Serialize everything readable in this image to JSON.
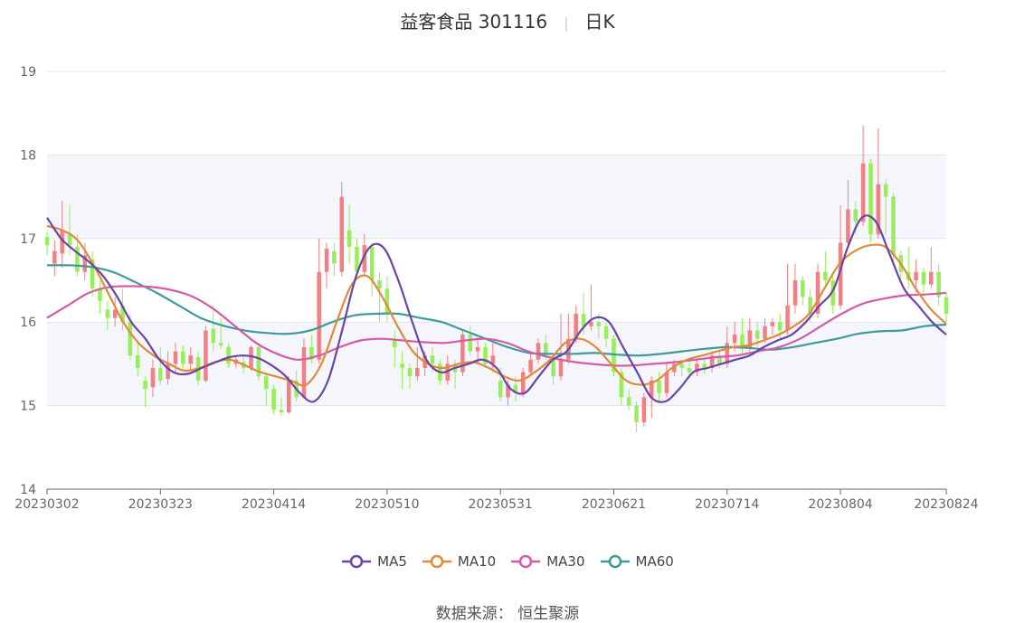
{
  "title": "益客食品 301116",
  "subtitle": "日K",
  "source_label": "数据来源：",
  "source_value": "恒生聚源",
  "colors": {
    "up": "#f47f82",
    "down": "#97ed5a",
    "ma5": "#6a44a6",
    "ma10": "#e08a3c",
    "ma30": "#d55aa8",
    "ma60": "#3f9a9a",
    "grid": "#dfe3ee",
    "band": "#f4f6fb"
  },
  "chart_data": {
    "type": "candlestick",
    "ylim": [
      14,
      19
    ],
    "yticks": [
      14,
      15,
      16,
      17,
      18,
      19
    ],
    "xtick_labels": [
      "20230302",
      "20230323",
      "20230414",
      "20230510",
      "20230531",
      "20230621",
      "20230714",
      "20230804",
      "20230824"
    ],
    "xtick_index": [
      0,
      15,
      30,
      45,
      60,
      75,
      90,
      105,
      119
    ],
    "legend": [
      "MA5",
      "MA10",
      "MA30",
      "MA60"
    ],
    "candles": [
      [
        17.02,
        16.92,
        17.08,
        16.8
      ],
      [
        16.7,
        16.85,
        16.98,
        16.55
      ],
      [
        16.82,
        17.1,
        17.45,
        16.65
      ],
      [
        17.05,
        16.92,
        17.4,
        16.8
      ],
      [
        16.9,
        16.6,
        17.05,
        16.55
      ],
      [
        16.6,
        16.8,
        16.95,
        16.5
      ],
      [
        16.75,
        16.4,
        16.85,
        16.3
      ],
      [
        16.4,
        16.25,
        16.5,
        16.1
      ],
      [
        16.15,
        16.05,
        16.25,
        15.9
      ],
      [
        16.05,
        16.15,
        16.3,
        15.95
      ],
      [
        16.2,
        16.0,
        16.4,
        15.9
      ],
      [
        16.0,
        15.6,
        16.1,
        15.55
      ],
      [
        15.6,
        15.45,
        15.75,
        15.35
      ],
      [
        15.3,
        15.2,
        15.35,
        14.98
      ],
      [
        15.22,
        15.45,
        15.55,
        15.1
      ],
      [
        15.45,
        15.3,
        15.7,
        15.25
      ],
      [
        15.32,
        15.5,
        15.65,
        15.25
      ],
      [
        15.5,
        15.65,
        15.75,
        15.4
      ],
      [
        15.65,
        15.5,
        15.72,
        15.45
      ],
      [
        15.5,
        15.6,
        15.7,
        15.42
      ],
      [
        15.58,
        15.3,
        15.65,
        15.25
      ],
      [
        15.3,
        15.9,
        15.95,
        15.28
      ],
      [
        15.92,
        15.75,
        16.2,
        15.65
      ],
      [
        15.75,
        15.72,
        16.05,
        15.68
      ],
      [
        15.7,
        15.5,
        15.75,
        15.45
      ],
      [
        15.5,
        15.55,
        15.6,
        15.45
      ],
      [
        15.52,
        15.45,
        15.6,
        15.38
      ],
      [
        15.45,
        15.7,
        15.72,
        15.42
      ],
      [
        15.7,
        15.35,
        15.75,
        15.3
      ],
      [
        15.35,
        15.2,
        15.4,
        15.0
      ],
      [
        15.2,
        14.95,
        15.25,
        14.9
      ],
      [
        14.95,
        14.92,
        15.1,
        14.88
      ],
      [
        14.92,
        15.3,
        15.35,
        14.9
      ],
      [
        15.3,
        15.1,
        15.42,
        15.05
      ],
      [
        15.1,
        15.7,
        15.8,
        15.08
      ],
      [
        15.7,
        15.55,
        15.85,
        15.5
      ],
      [
        15.55,
        16.6,
        17.0,
        15.5
      ],
      [
        16.6,
        16.88,
        16.95,
        16.4
      ],
      [
        16.85,
        16.7,
        16.95,
        16.55
      ],
      [
        16.6,
        17.5,
        17.68,
        16.55
      ],
      [
        17.1,
        16.9,
        17.4,
        16.7
      ],
      [
        16.9,
        16.6,
        17.0,
        16.55
      ],
      [
        16.6,
        16.92,
        17.05,
        16.55
      ],
      [
        16.9,
        16.5,
        16.95,
        16.3
      ],
      [
        16.5,
        16.4,
        16.6,
        16.0
      ],
      [
        16.4,
        16.1,
        16.55,
        16.0
      ],
      [
        15.8,
        15.7,
        15.9,
        15.45
      ],
      [
        15.5,
        15.45,
        15.65,
        15.2
      ],
      [
        15.45,
        15.35,
        15.5,
        15.2
      ],
      [
        15.35,
        15.45,
        15.7,
        15.3
      ],
      [
        15.45,
        15.6,
        15.65,
        15.35
      ],
      [
        15.6,
        15.5,
        15.7,
        15.4
      ],
      [
        15.5,
        15.3,
        15.55,
        15.25
      ],
      [
        15.3,
        15.5,
        15.6,
        15.25
      ],
      [
        15.5,
        15.4,
        15.55,
        15.2
      ],
      [
        15.4,
        15.85,
        15.9,
        15.35
      ],
      [
        15.85,
        15.65,
        15.95,
        15.6
      ],
      [
        15.65,
        15.7,
        15.8,
        15.5
      ],
      [
        15.7,
        15.5,
        15.75,
        15.45
      ],
      [
        15.5,
        15.6,
        15.75,
        15.4
      ],
      [
        15.3,
        15.1,
        15.45,
        15.05
      ],
      [
        15.1,
        15.25,
        15.3,
        15.0
      ],
      [
        15.25,
        15.15,
        15.35,
        15.05
      ],
      [
        15.15,
        15.4,
        15.45,
        15.1
      ],
      [
        15.4,
        15.55,
        15.65,
        15.35
      ],
      [
        15.55,
        15.75,
        15.8,
        15.5
      ],
      [
        15.75,
        15.6,
        15.85,
        15.55
      ],
      [
        15.55,
        15.35,
        15.6,
        15.25
      ],
      [
        15.35,
        15.55,
        16.1,
        15.3
      ],
      [
        15.55,
        15.8,
        16.1,
        15.5
      ],
      [
        15.8,
        16.1,
        16.2,
        15.75
      ],
      [
        16.1,
        15.95,
        16.35,
        15.85
      ],
      [
        15.95,
        16.0,
        16.45,
        15.9
      ],
      [
        16.0,
        15.95,
        16.1,
        15.8
      ],
      [
        15.95,
        15.8,
        16.0,
        15.7
      ],
      [
        15.8,
        15.4,
        15.85,
        15.35
      ],
      [
        15.4,
        15.1,
        15.45,
        15.0
      ],
      [
        15.1,
        15.0,
        15.2,
        14.95
      ],
      [
        15.0,
        14.8,
        15.05,
        14.68
      ],
      [
        14.8,
        15.1,
        15.15,
        14.75
      ],
      [
        15.1,
        15.3,
        15.35,
        14.85
      ],
      [
        15.3,
        15.15,
        15.4,
        15.05
      ],
      [
        15.15,
        15.4,
        15.5,
        15.1
      ],
      [
        15.4,
        15.5,
        15.55,
        15.35
      ],
      [
        15.5,
        15.45,
        15.55,
        15.35
      ],
      [
        15.45,
        15.4,
        15.52,
        15.32
      ],
      [
        15.4,
        15.5,
        15.55,
        15.35
      ],
      [
        15.5,
        15.45,
        15.55,
        15.38
      ],
      [
        15.45,
        15.6,
        15.65,
        15.4
      ],
      [
        15.6,
        15.5,
        15.65,
        15.45
      ],
      [
        15.5,
        15.75,
        15.95,
        15.45
      ],
      [
        15.75,
        15.85,
        16.0,
        15.65
      ],
      [
        15.85,
        15.7,
        16.05,
        15.6
      ],
      [
        15.7,
        15.9,
        16.05,
        15.65
      ],
      [
        15.9,
        15.8,
        16.0,
        15.7
      ],
      [
        15.8,
        15.95,
        16.05,
        15.75
      ],
      [
        15.95,
        16.0,
        16.05,
        15.85
      ],
      [
        16.0,
        15.9,
        16.1,
        15.8
      ],
      [
        15.9,
        16.2,
        16.7,
        15.85
      ],
      [
        16.2,
        16.5,
        16.7,
        16.1
      ],
      [
        16.5,
        16.3,
        16.55,
        16.2
      ],
      [
        16.3,
        16.1,
        16.4,
        16.0
      ],
      [
        16.1,
        16.6,
        16.7,
        16.05
      ],
      [
        16.6,
        16.5,
        16.85,
        16.4
      ],
      [
        16.5,
        16.2,
        16.6,
        16.1
      ],
      [
        16.2,
        16.95,
        17.4,
        16.15
      ],
      [
        16.95,
        17.35,
        17.7,
        16.9
      ],
      [
        17.35,
        17.2,
        17.45,
        17.05
      ],
      [
        17.2,
        17.9,
        18.35,
        17.15
      ],
      [
        17.9,
        17.05,
        17.95,
        16.95
      ],
      [
        17.05,
        17.65,
        18.32,
        17.0
      ],
      [
        17.65,
        17.5,
        17.7,
        17.05
      ],
      [
        17.5,
        16.8,
        17.55,
        16.7
      ],
      [
        16.8,
        16.6,
        16.85,
        16.5
      ],
      [
        16.6,
        16.5,
        16.9,
        16.4
      ],
      [
        16.5,
        16.6,
        16.75,
        16.35
      ],
      [
        16.6,
        16.45,
        16.65,
        16.3
      ],
      [
        16.45,
        16.6,
        16.9,
        16.4
      ],
      [
        16.6,
        16.3,
        16.7,
        16.2
      ],
      [
        16.3,
        16.1,
        16.35,
        16.0
      ]
    ],
    "ma5": [
      17.25,
      17.0,
      16.85,
      16.72,
      16.55,
      16.3,
      16.0,
      15.8,
      15.55,
      15.4,
      15.38,
      15.45,
      15.52,
      15.58,
      15.6,
      15.57,
      15.48,
      15.35,
      15.15,
      15.05,
      15.3,
      15.9,
      16.55,
      16.9,
      16.88,
      16.5,
      16.0,
      15.55,
      15.4,
      15.45,
      15.5,
      15.55,
      15.45,
      15.2,
      15.15,
      15.35,
      15.55,
      15.65,
      15.9,
      16.05,
      16.0,
      15.7,
      15.4,
      15.1,
      15.05,
      15.2,
      15.4,
      15.45,
      15.5,
      15.55,
      15.6,
      15.7,
      15.78,
      15.85,
      16.0,
      16.2,
      16.4,
      16.9,
      17.25,
      17.2,
      16.8,
      16.4,
      16.2,
      16.0,
      15.85
    ],
    "ma10": [
      17.15,
      17.1,
      16.98,
      16.7,
      16.35,
      16.0,
      15.75,
      15.6,
      15.5,
      15.42,
      15.45,
      15.52,
      15.55,
      15.48,
      15.4,
      15.35,
      15.3,
      15.25,
      15.5,
      16.0,
      16.45,
      16.55,
      16.3,
      15.95,
      15.65,
      15.5,
      15.45,
      15.5,
      15.52,
      15.45,
      15.35,
      15.3,
      15.4,
      15.55,
      15.75,
      15.8,
      15.7,
      15.5,
      15.3,
      15.25,
      15.3,
      15.45,
      15.55,
      15.6,
      15.65,
      15.7,
      15.72,
      15.78,
      15.85,
      15.95,
      16.1,
      16.4,
      16.7,
      16.85,
      16.92,
      16.9,
      16.7,
      16.4,
      16.15,
      15.98
    ],
    "ma30": [
      16.05,
      16.2,
      16.35,
      16.42,
      16.43,
      16.42,
      16.38,
      16.3,
      16.15,
      15.95,
      15.75,
      15.62,
      15.55,
      15.6,
      15.7,
      15.78,
      15.8,
      15.78,
      15.76,
      15.75,
      15.78,
      15.8,
      15.75,
      15.65,
      15.58,
      15.53,
      15.5,
      15.48,
      15.48,
      15.5,
      15.52,
      15.55,
      15.58,
      15.6,
      15.65,
      15.7,
      15.8,
      15.95,
      16.1,
      16.22,
      16.28,
      16.32,
      16.33,
      16.35
    ],
    "ma60": [
      16.68,
      16.68,
      16.66,
      16.6,
      16.48,
      16.35,
      16.2,
      16.05,
      15.96,
      15.9,
      15.87,
      15.86,
      15.9,
      16.0,
      16.08,
      16.1,
      16.1,
      16.05,
      16.0,
      15.9,
      15.8,
      15.7,
      15.63,
      15.62,
      15.62,
      15.63,
      15.61,
      15.6,
      15.62,
      15.65,
      15.68,
      15.7,
      15.69,
      15.67,
      15.7,
      15.75,
      15.8,
      15.86,
      15.89,
      15.9,
      15.95,
      15.97
    ]
  }
}
